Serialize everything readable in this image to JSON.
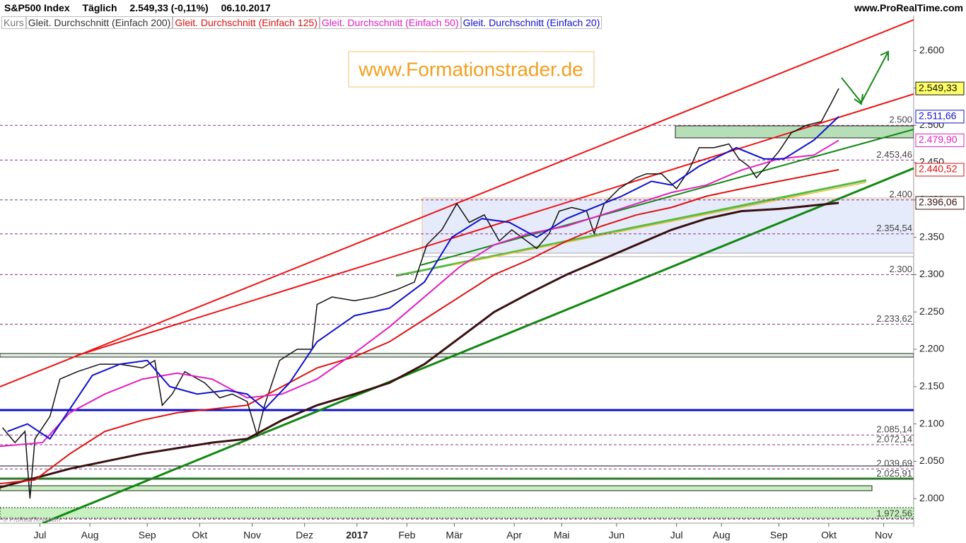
{
  "header": {
    "instrument": "S&P500 Index",
    "period": "Täglich",
    "quote": "2.549,33 (-0,11%)",
    "date": "06.10.2017",
    "site": "www.ProRealTime.com"
  },
  "watermark": "www.Formationstrader.de",
  "copyright": "© ProRealTime.com",
  "chart_data": {
    "type": "line",
    "xlim": [
      0,
      366
    ],
    "ylim": [
      1967,
      2647
    ],
    "xticks": [
      {
        "value": 16,
        "label": "Jul"
      },
      {
        "value": 36,
        "label": "Aug"
      },
      {
        "value": 59,
        "label": "Sep"
      },
      {
        "value": 80,
        "label": "Okt"
      },
      {
        "value": 101,
        "label": "Nov"
      },
      {
        "value": 122,
        "label": "Dez"
      },
      {
        "value": 143,
        "label": "2017"
      },
      {
        "value": 163,
        "label": "Feb"
      },
      {
        "value": 182,
        "label": "Mär"
      },
      {
        "value": 206,
        "label": "Apr"
      },
      {
        "value": 225,
        "label": "Mai"
      },
      {
        "value": 247,
        "label": "Jun"
      },
      {
        "value": 271,
        "label": "Jul"
      },
      {
        "value": 289,
        "label": "Aug"
      },
      {
        "value": 312,
        "label": "Sep"
      },
      {
        "value": 332,
        "label": "Okt"
      },
      {
        "value": 354,
        "label": "Nov"
      }
    ],
    "yticks": [
      {
        "value": 2000,
        "label": "2.000"
      },
      {
        "value": 2050,
        "label": "2.050"
      },
      {
        "value": 2100,
        "label": "2.100"
      },
      {
        "value": 2150,
        "label": "2.150"
      },
      {
        "value": 2200,
        "label": "2.200"
      },
      {
        "value": 2250,
        "label": "2.250"
      },
      {
        "value": 2300,
        "label": "2.300"
      },
      {
        "value": 2350,
        "label": "2.350"
      },
      {
        "value": 2400,
        "label": "2.400"
      },
      {
        "value": 2450,
        "label": "2.450"
      },
      {
        "value": 2500,
        "label": "2.500"
      },
      {
        "value": 2550,
        "label": "2.550"
      },
      {
        "value": 2600,
        "label": "2.600"
      }
    ],
    "levels": [
      {
        "value": 2500,
        "label": "2.500"
      },
      {
        "value": 2453.46,
        "label": "2.453,46"
      },
      {
        "value": 2400,
        "label": "2.400"
      },
      {
        "value": 2354.54,
        "label": "2.354,54"
      },
      {
        "value": 2300,
        "label": "2.300"
      },
      {
        "value": 2233.62,
        "label": "2.233,62"
      },
      {
        "value": 2085.14,
        "label": "2.085,14"
      },
      {
        "value": 2072.14,
        "label": "2.072,14"
      },
      {
        "value": 2039.69,
        "label": "2.039,69"
      },
      {
        "value": 2025.91,
        "label": "2.025,91"
      },
      {
        "value": 1972.56,
        "label": "1.972,56"
      }
    ],
    "series": [
      {
        "name": "Kurs",
        "color": "#111111",
        "legend_color": "#777777",
        "tag": {
          "label": "2.549,33",
          "fill": "#ffff66"
        },
        "x": [
          1,
          6,
          10,
          12,
          14,
          20,
          24,
          31,
          40,
          48,
          57,
          62,
          65,
          69,
          74,
          82,
          88,
          93,
          99,
          103,
          106,
          112,
          119,
          125,
          127,
          133,
          142,
          150,
          159,
          166,
          171,
          177,
          183,
          188,
          194,
          200,
          205,
          211,
          215,
          220,
          224,
          229,
          235,
          238,
          242,
          248,
          255,
          259,
          265,
          271,
          276,
          280,
          286,
          292,
          296,
          300,
          303,
          307,
          312,
          317,
          323,
          329,
          333,
          336
        ],
        "values": [
          2095,
          2075,
          2090,
          2000,
          2080,
          2110,
          2160,
          2170,
          2180,
          2180,
          2175,
          2185,
          2125,
          2140,
          2170,
          2155,
          2135,
          2140,
          2130,
          2085,
          2125,
          2185,
          2200,
          2200,
          2260,
          2270,
          2265,
          2270,
          2280,
          2290,
          2340,
          2360,
          2395,
          2370,
          2380,
          2345,
          2360,
          2345,
          2335,
          2355,
          2385,
          2390,
          2385,
          2355,
          2395,
          2415,
          2430,
          2435,
          2435,
          2415,
          2440,
          2470,
          2470,
          2475,
          2455,
          2445,
          2430,
          2445,
          2465,
          2490,
          2500,
          2505,
          2530,
          2549.33
        ]
      },
      {
        "name": "Gleit. Durchschnitt (Einfach 200)",
        "color": "#3a1010",
        "legend_color": "#333333",
        "tag": {
          "label": "2.396,06",
          "fill": "#ffffff"
        },
        "x": [
          0,
          28,
          57,
          85,
          99,
          113,
          127,
          142,
          156,
          170,
          184,
          198,
          212,
          227,
          241,
          255,
          269,
          283,
          297,
          312,
          336
        ],
        "values": [
          2015,
          2040,
          2060,
          2075,
          2080,
          2105,
          2125,
          2140,
          2155,
          2180,
          2215,
          2250,
          2275,
          2300,
          2320,
          2340,
          2360,
          2375,
          2385,
          2388,
          2396.06
        ]
      },
      {
        "name": "Gleit. Durchschnitt (Einfach 125)",
        "color": "#dd1111",
        "legend_color": "#dd1111",
        "tag": {
          "label": "2.440,52",
          "fill": "#ffffff"
        },
        "x": [
          0,
          14,
          28,
          42,
          57,
          71,
          85,
          99,
          113,
          127,
          142,
          156,
          170,
          184,
          198,
          212,
          227,
          241,
          255,
          269,
          283,
          297,
          312,
          336
        ],
        "values": [
          2020,
          2025,
          2060,
          2090,
          2105,
          2115,
          2120,
          2125,
          2150,
          2175,
          2190,
          2210,
          2240,
          2270,
          2300,
          2320,
          2345,
          2365,
          2380,
          2390,
          2405,
          2415,
          2425,
          2440.52
        ]
      },
      {
        "name": "Gleit. Durchschnitt (Einfach 50)",
        "color": "#e020c0",
        "legend_color": "#e020c0",
        "tag": {
          "label": "2.479,90",
          "fill": "#ffffff"
        },
        "x": [
          0,
          17,
          28,
          42,
          57,
          71,
          85,
          99,
          113,
          127,
          142,
          156,
          170,
          184,
          198,
          212,
          227,
          241,
          255,
          269,
          283,
          297,
          312,
          326,
          336
        ],
        "values": [
          2070,
          2075,
          2115,
          2140,
          2160,
          2168,
          2160,
          2135,
          2140,
          2160,
          2195,
          2230,
          2270,
          2310,
          2340,
          2355,
          2365,
          2380,
          2395,
          2410,
          2420,
          2440,
          2455,
          2460,
          2479.9
        ]
      },
      {
        "name": "Gleit. Durchschnitt (Einfach 20)",
        "color": "#1010cc",
        "legend_color": "#1010cc",
        "tag": {
          "label": "2.511,66",
          "fill": "#ffffff"
        },
        "x": [
          3,
          11,
          20,
          28,
          37,
          48,
          59,
          68,
          79,
          91,
          99,
          106,
          116,
          127,
          142,
          156,
          170,
          181,
          193,
          204,
          215,
          227,
          238,
          249,
          261,
          269,
          280,
          295,
          306,
          314,
          326,
          336
        ],
        "values": [
          2090,
          2100,
          2080,
          2120,
          2165,
          2180,
          2185,
          2150,
          2140,
          2145,
          2140,
          2120,
          2155,
          2210,
          2245,
          2255,
          2290,
          2350,
          2375,
          2370,
          2350,
          2375,
          2390,
          2405,
          2425,
          2420,
          2445,
          2470,
          2455,
          2455,
          2480,
          2511.66
        ]
      }
    ]
  }
}
